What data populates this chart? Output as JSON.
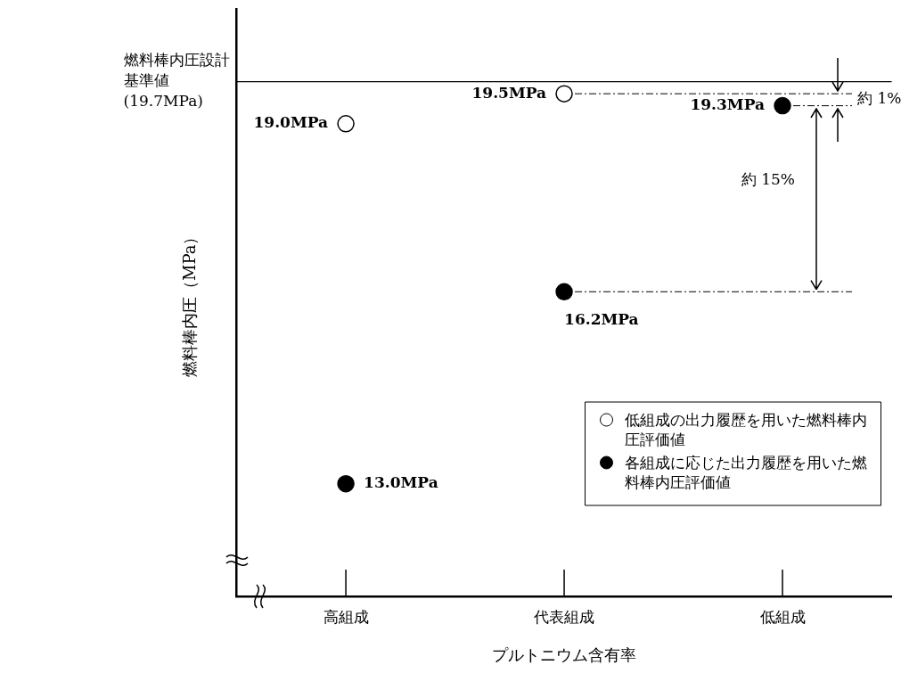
{
  "chart_data": {
    "type": "scatter",
    "xlabel": "プルトニウム含有率",
    "ylabel": "燃料棒内圧（MPa）",
    "categories": [
      "高組成",
      "代表組成",
      "低組成"
    ],
    "series": [
      {
        "name": "低組成の出力履歴を用いた燃料棒内圧評価値",
        "color": "#ffffff",
        "values": [
          19.0,
          19.5,
          null
        ],
        "value_labels": [
          "19.0MPa",
          "19.5MPa",
          null
        ]
      },
      {
        "name": "各組成に応じた出力履歴を用いた燃料棒内圧評価値",
        "color": "#000000",
        "values": [
          13.0,
          16.2,
          19.3
        ],
        "value_labels": [
          "13.0MPa",
          "16.2MPa",
          "19.3MPa"
        ]
      }
    ],
    "ref_lines": [
      {
        "axis": "y",
        "value": 19.7,
        "label": "燃料棒内圧設計基準値(19.7MPa)",
        "color": "#000000"
      }
    ],
    "annotations": [
      "約 1%",
      "約 15%"
    ],
    "marker": "circle",
    "grid": false,
    "legend": "bottom right",
    "tick_labels": "x"
  }
}
